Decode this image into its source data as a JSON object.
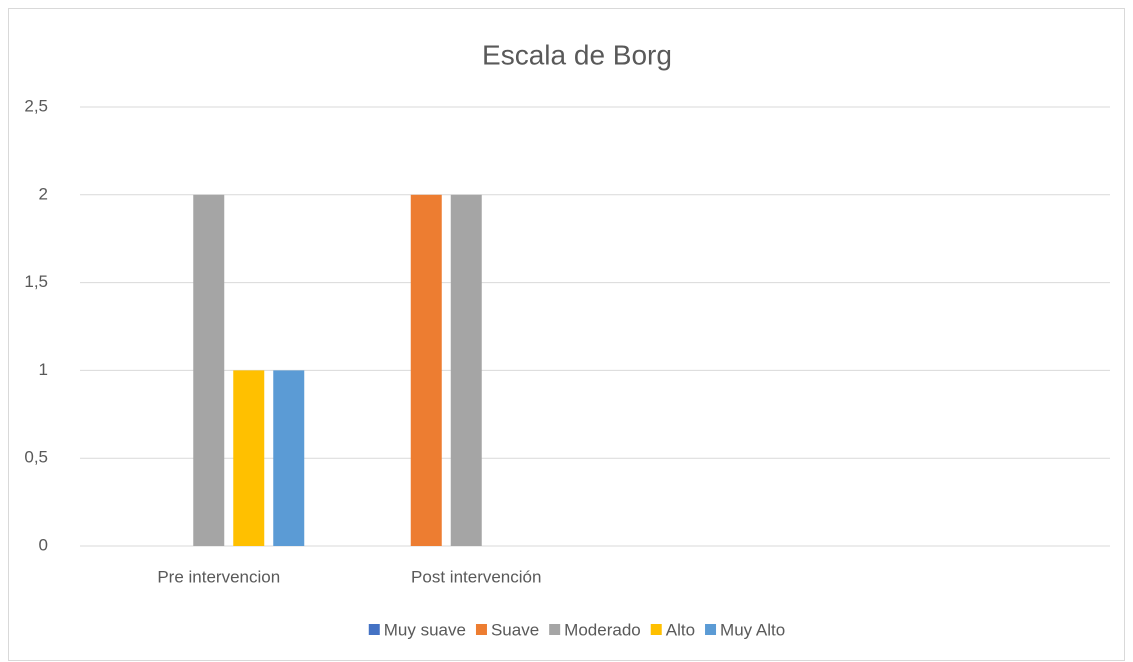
{
  "chart_data": {
    "type": "bar",
    "title": "Escala de Borg",
    "categories": [
      "Pre intervencion",
      "Post intervención",
      null,
      null
    ],
    "series": [
      {
        "name": "Muy suave",
        "color": "#4472c4",
        "values": [
          0,
          0,
          null,
          null
        ]
      },
      {
        "name": "Suave",
        "color": "#ed7d31",
        "values": [
          0,
          2,
          null,
          null
        ]
      },
      {
        "name": "Moderado",
        "color": "#a5a5a5",
        "values": [
          2,
          2,
          null,
          null
        ]
      },
      {
        "name": "Alto",
        "color": "#ffc000",
        "values": [
          1,
          0,
          null,
          null
        ]
      },
      {
        "name": "Muy Alto",
        "color": "#5b9bd5",
        "values": [
          1,
          0,
          null,
          null
        ]
      }
    ],
    "ylim": [
      0,
      2.5
    ],
    "yticks": [
      0,
      {
        "value": 0.5,
        "label": "0,5"
      },
      1,
      {
        "value": 1.5,
        "label": "1,5"
      },
      2,
      {
        "value": 2.5,
        "label": "2,5"
      }
    ],
    "grid": true,
    "legend": "bottom"
  }
}
